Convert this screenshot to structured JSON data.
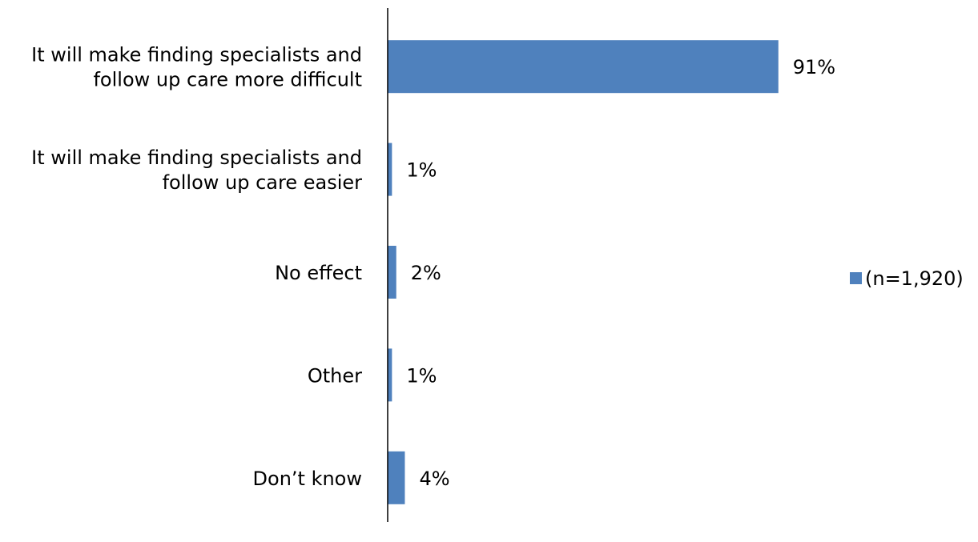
{
  "chart_data": {
    "type": "bar",
    "orientation": "horizontal",
    "categories": [
      [
        "It will make finding specialists and",
        "follow up care more difficult"
      ],
      [
        "It will make finding specialists and",
        "follow up care easier"
      ],
      [
        "No effect"
      ],
      [
        "Other"
      ],
      [
        "Don’t know"
      ]
    ],
    "series": [
      {
        "name": "(n=1,920)",
        "values": [
          91,
          1,
          2,
          1,
          4
        ],
        "labels": [
          "91%",
          "1%",
          "2%",
          "1%",
          "4%"
        ],
        "color": "#4f81bd"
      }
    ],
    "xlim": [
      0,
      100
    ],
    "legend": {
      "position": "right",
      "label": "(n=1,920)"
    },
    "grid": false,
    "title": "",
    "xlabel": "",
    "ylabel": ""
  }
}
